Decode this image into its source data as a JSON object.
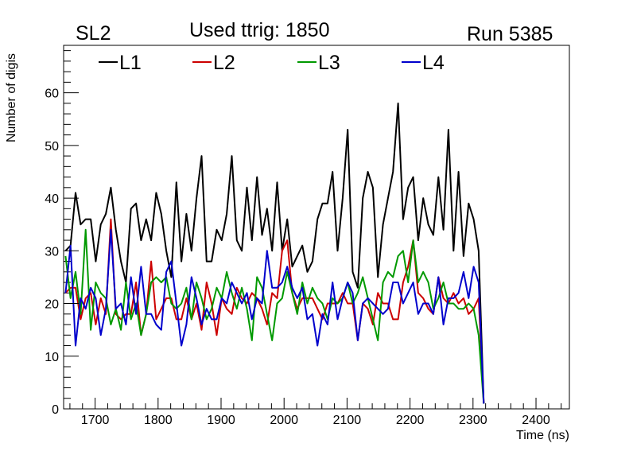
{
  "header": {
    "left_label": "SL2",
    "center_label": "Used ttrig: 1850",
    "right_label": "Run 5385"
  },
  "colors": {
    "L1": "#000000",
    "L2": "#cc0000",
    "L3": "#009900",
    "L4": "#0000cc"
  },
  "chart_data": {
    "type": "line",
    "title": "Used ttrig: 1850",
    "xlabel": "Time (ns)",
    "ylabel": "Number of digis",
    "xlim": [
      1650,
      2453
    ],
    "ylim": [
      0,
      69
    ],
    "xticks": [
      1700,
      1800,
      1900,
      2000,
      2100,
      2200,
      2300,
      2400
    ],
    "yticks": [
      0,
      10,
      20,
      30,
      40,
      50,
      60
    ],
    "grid": false,
    "legend_position": "top",
    "x_start": 1653,
    "x_step": 8,
    "series": [
      {
        "name": "L1",
        "values": [
          30,
          31,
          41,
          35,
          36,
          36,
          28,
          35,
          37,
          42,
          34,
          28,
          24,
          38,
          39,
          32,
          36,
          32,
          41,
          37,
          30,
          25,
          43,
          28,
          37,
          30,
          40,
          48,
          28,
          28,
          34,
          32,
          37,
          48,
          32,
          30,
          42,
          32,
          44,
          33,
          38,
          30,
          43,
          30,
          36,
          27,
          29,
          31,
          26,
          28,
          36,
          39,
          39,
          45,
          30,
          40,
          53,
          26,
          23,
          40,
          45,
          42,
          25,
          35,
          40,
          45,
          58,
          36,
          42,
          44,
          32,
          40,
          35,
          33,
          44,
          34,
          53,
          30,
          45,
          29,
          39,
          36,
          30,
          1
        ]
      },
      {
        "name": "L2",
        "values": [
          22,
          23,
          23,
          17,
          21,
          22,
          16,
          21,
          18,
          36,
          18,
          17,
          18,
          18,
          24,
          14,
          18,
          28,
          17,
          19,
          21,
          21,
          17,
          17,
          21,
          17,
          20,
          15,
          24,
          20,
          14,
          21,
          19,
          18,
          23,
          21,
          20,
          22,
          21,
          19,
          16,
          22,
          21,
          30,
          32,
          22,
          19,
          21,
          21,
          21,
          19,
          17,
          20,
          20,
          20,
          22,
          20,
          20,
          13,
          20,
          19,
          16,
          22,
          20,
          20,
          17,
          17,
          24,
          27,
          32,
          22,
          21,
          19,
          18,
          25,
          21,
          20,
          22,
          20,
          21,
          18,
          19,
          21,
          1
        ]
      },
      {
        "name": "L3",
        "values": [
          29,
          21,
          26,
          18,
          34,
          15,
          24,
          22,
          21,
          16,
          19,
          15,
          24,
          17,
          20,
          14,
          18,
          24,
          25,
          24,
          25,
          20,
          19,
          20,
          23,
          17,
          24,
          21,
          17,
          19,
          23,
          21,
          26,
          22,
          19,
          23,
          19,
          13,
          25,
          23,
          18,
          13,
          20,
          21,
          26,
          22,
          18,
          24,
          20,
          23,
          21,
          20,
          17,
          21,
          20,
          21,
          24,
          20,
          22,
          25,
          21,
          17,
          13,
          24,
          26,
          25,
          29,
          30,
          24,
          32,
          24,
          26,
          24,
          19,
          21,
          24,
          20,
          20,
          19,
          19,
          20,
          19,
          14,
          1
        ]
      },
      {
        "name": "L4",
        "values": [
          22,
          31,
          12,
          21,
          19,
          23,
          21,
          14,
          19,
          34,
          19,
          20,
          16,
          25,
          18,
          27,
          18,
          18,
          16,
          15,
          26,
          28,
          20,
          12,
          16,
          25,
          21,
          16,
          19,
          17,
          17,
          21,
          20,
          24,
          22,
          20,
          22,
          17,
          21,
          20,
          30,
          23,
          23,
          24,
          27,
          23,
          21,
          23,
          17,
          18,
          12,
          18,
          16,
          24,
          17,
          21,
          24,
          22,
          13,
          20,
          21,
          20,
          19,
          18,
          19,
          24,
          24,
          20,
          22,
          24,
          18,
          20,
          20,
          18,
          25,
          16,
          21,
          21,
          22,
          26,
          21,
          27,
          24,
          1
        ]
      }
    ]
  }
}
